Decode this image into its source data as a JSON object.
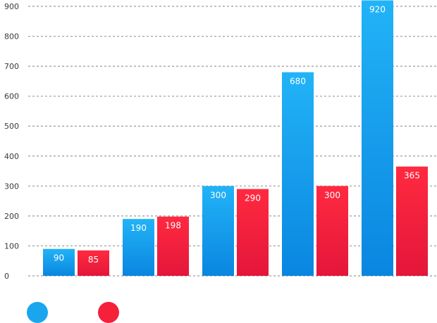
{
  "chart_data": {
    "type": "bar",
    "categories": [
      "",
      "",
      "",
      "",
      ""
    ],
    "series": [
      {
        "color": "#1aa6ef",
        "values": [
          90,
          190,
          300,
          680,
          920
        ],
        "labels": [
          "90",
          "190",
          "300",
          "680",
          "920"
        ]
      },
      {
        "color": "#f5203a",
        "values": [
          85,
          198,
          290,
          300,
          365
        ],
        "labels": [
          "85",
          "198",
          "290",
          "300",
          "365"
        ]
      }
    ],
    "ylim": [
      0,
      900
    ],
    "yticks": [
      {
        "value": 0,
        "label": "0"
      },
      {
        "value": 100,
        "label": "100"
      },
      {
        "value": 200,
        "label": "200"
      },
      {
        "value": 300,
        "label": "300"
      },
      {
        "value": 400,
        "label": "400"
      },
      {
        "value": 500,
        "label": "500"
      },
      {
        "value": 600,
        "label": "600"
      },
      {
        "value": 700,
        "label": "700"
      },
      {
        "value": 800,
        "label": "800"
      },
      {
        "value": 900,
        "label": "900"
      }
    ],
    "grid": true,
    "legend": "bottom-left",
    "title": "",
    "xlabel": "",
    "ylabel": ""
  }
}
